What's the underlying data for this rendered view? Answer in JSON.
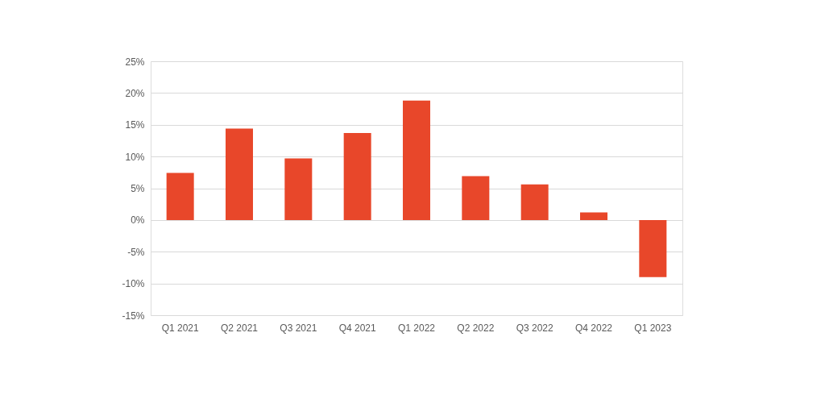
{
  "chart_data": {
    "type": "bar",
    "categories": [
      "Q1 2021",
      "Q2 2021",
      "Q3 2021",
      "Q4 2021",
      "Q1 2022",
      "Q2 2022",
      "Q3 2022",
      "Q4 2022",
      "Q1 2023"
    ],
    "values": [
      7.4,
      14.4,
      9.7,
      13.7,
      18.8,
      6.9,
      5.6,
      1.2,
      -9.0
    ],
    "color": "#e8472a",
    "ylim": [
      -15,
      25
    ],
    "yticks": [
      {
        "value": -15,
        "label": "-15%"
      },
      {
        "value": -10,
        "label": "-10%"
      },
      {
        "value": -5,
        "label": "-5%"
      },
      {
        "value": 0,
        "label": "0%"
      },
      {
        "value": 5,
        "label": "5%"
      },
      {
        "value": 10,
        "label": "10%"
      },
      {
        "value": 15,
        "label": "15%"
      },
      {
        "value": 20,
        "label": "20%"
      },
      {
        "value": 25,
        "label": "25%"
      }
    ],
    "grid": "y"
  }
}
